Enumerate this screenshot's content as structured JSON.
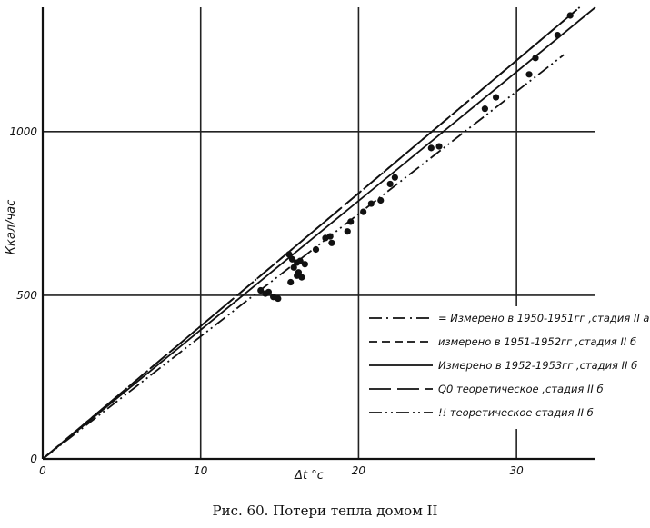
{
  "caption": "Рис. 60. Потери тепла домом II",
  "chart_data": {
    "type": "line",
    "title": "",
    "xlabel": "Δt °c",
    "ylabel": "Ккал/час",
    "xlim": [
      0,
      35
    ],
    "ylim": [
      0,
      1380
    ],
    "x_ticks": [
      0,
      10,
      20,
      30
    ],
    "y_ticks": [
      0,
      500,
      1000
    ],
    "grid": true,
    "legend_position": "lower-right",
    "series": [
      {
        "name": "= Измерено в 1950-1951гг ,стадия II a",
        "style": "dashdot",
        "x": [
          0,
          34
        ],
        "y": [
          0,
          1380
        ]
      },
      {
        "name": "измерено в 1951-1952гг ,стадия II б",
        "style": "dashed",
        "x": [
          0,
          34
        ],
        "y": [
          0,
          1380
        ]
      },
      {
        "name": "Измерено в 1952-1953гг ,стадия II б",
        "style": "solid",
        "x": [
          0,
          35
        ],
        "y": [
          0,
          1380
        ]
      },
      {
        "name": "Q0 теоретическое ,стадия II б",
        "style": "longdash",
        "x": [
          0,
          34
        ],
        "y": [
          0,
          1380
        ]
      },
      {
        "name": "!! теоретическое стадия II б",
        "style": "dashdotdot",
        "x": [
          0,
          33
        ],
        "y": [
          0,
          1235
        ]
      }
    ],
    "points": {
      "x": [
        13.8,
        14.1,
        14.3,
        14.6,
        14.9,
        15.6,
        15.8,
        15.9,
        16.1,
        16.2,
        16.3,
        16.4,
        16.6,
        15.7,
        16.1,
        17.3,
        17.9,
        18.2,
        18.3,
        19.3,
        19.5,
        20.3,
        20.8,
        21.4,
        22.0,
        22.3,
        24.6,
        25.1,
        28.0,
        28.7,
        30.8,
        31.2,
        32.6,
        33.4
      ],
      "y": [
        515,
        505,
        510,
        495,
        490,
        625,
        610,
        585,
        600,
        570,
        605,
        555,
        595,
        540,
        560,
        640,
        675,
        680,
        660,
        695,
        725,
        755,
        780,
        790,
        840,
        860,
        950,
        955,
        1070,
        1105,
        1175,
        1225,
        1295,
        1355
      ]
    }
  }
}
